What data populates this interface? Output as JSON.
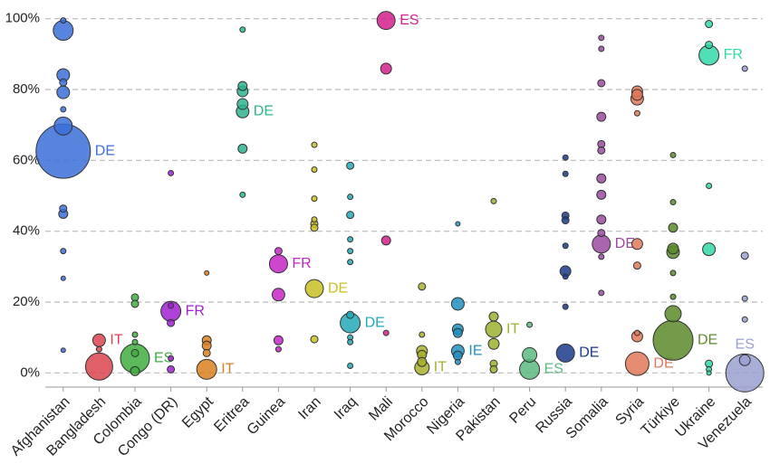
{
  "chart_data": {
    "type": "bubble",
    "categories": [
      "Afghanistan",
      "Bangladesh",
      "Colombia",
      "Congo (DR)",
      "Egypt",
      "Eritrea",
      "Guinea",
      "Iran",
      "Iraq",
      "Mali",
      "Morocco",
      "Nigeria",
      "Pakistan",
      "Peru",
      "Russia",
      "Somalia",
      "Syria",
      "Türkiye",
      "Ukraine",
      "Venezuela"
    ],
    "ylim": [
      -4,
      104
    ],
    "yticks": [
      {
        "value": 0,
        "label": "0%"
      },
      {
        "value": 20,
        "label": "20%"
      },
      {
        "value": 40,
        "label": "40%"
      },
      {
        "value": 60,
        "label": "60%"
      },
      {
        "value": 80,
        "label": "80%"
      },
      {
        "value": 100,
        "label": "100%"
      }
    ],
    "grid": true,
    "series": [
      {
        "color": "#3b6fd8",
        "values": [
          99.5,
          96.7,
          84.1,
          82,
          79.2,
          74.4,
          69.7,
          62.6,
          46.4,
          44.9,
          34.4,
          26.7,
          6.4
        ],
        "sizes": [
          3,
          11,
          7,
          4,
          7,
          3,
          10,
          30,
          4,
          5,
          3,
          2.5,
          2.5
        ],
        "point_labels": [
          null,
          null,
          null,
          null,
          null,
          null,
          null,
          "DE",
          null,
          null,
          null,
          null,
          null
        ]
      },
      {
        "color": "#d9444f",
        "values": [
          9.2,
          6.7,
          1.8
        ],
        "sizes": [
          7,
          3,
          15
        ],
        "point_labels": [
          "IT",
          null,
          null
        ]
      },
      {
        "color": "#3fae3f",
        "values": [
          21.3,
          19.5,
          10.8,
          8.7,
          5.6,
          4.1,
          0.5
        ],
        "sizes": [
          4,
          4,
          3,
          3,
          4,
          16,
          5
        ],
        "point_labels": [
          null,
          null,
          null,
          null,
          null,
          "ES",
          null
        ]
      },
      {
        "color": "#a020d0",
        "values": [
          56.4,
          19,
          17.4,
          14.1,
          4.1,
          1
        ],
        "sizes": [
          3,
          3,
          11,
          4,
          3,
          4
        ],
        "point_labels": [
          null,
          null,
          "FR",
          null,
          null,
          null
        ]
      },
      {
        "color": "#d98020",
        "values": [
          28.2,
          9.2,
          7.7,
          5.6,
          1
        ],
        "sizes": [
          2.5,
          5,
          5,
          4,
          11
        ],
        "point_labels": [
          null,
          null,
          null,
          null,
          "IT"
        ]
      },
      {
        "color": "#2fb38f",
        "values": [
          96.9,
          81,
          79.5,
          75.9,
          73.8,
          63.3,
          50.3
        ],
        "sizes": [
          3,
          5,
          6,
          6,
          7,
          5,
          3
        ],
        "point_labels": [
          null,
          null,
          null,
          null,
          "DE",
          null,
          null
        ]
      },
      {
        "color": "#c624c6",
        "values": [
          34.4,
          30.8,
          22.1,
          9.2,
          6.7
        ],
        "sizes": [
          4,
          10,
          7,
          5,
          3
        ],
        "point_labels": [
          null,
          "FR",
          null,
          null,
          null
        ]
      },
      {
        "color": "#c8c024",
        "values": [
          64.4,
          57.4,
          49.2,
          43.3,
          42.1,
          41,
          23.8,
          9.5
        ],
        "sizes": [
          3,
          3,
          3,
          3,
          4,
          4,
          10,
          4
        ],
        "point_labels": [
          null,
          null,
          null,
          null,
          null,
          null,
          "DE",
          null
        ]
      },
      {
        "color": "#22a8b8",
        "values": [
          58.5,
          49.7,
          44.6,
          37.7,
          34.4,
          31.3,
          16.4,
          14.1,
          10,
          8.7,
          2
        ],
        "sizes": [
          4,
          3,
          4,
          3,
          3,
          3,
          4,
          11,
          3,
          3,
          3
        ],
        "point_labels": [
          null,
          null,
          null,
          null,
          null,
          null,
          null,
          "DE",
          null,
          null,
          null
        ]
      },
      {
        "color": "#d4208c",
        "values": [
          99.5,
          85.9,
          37.4,
          11.3
        ],
        "sizes": [
          10,
          6,
          5,
          3
        ],
        "point_labels": [
          "ES",
          null,
          null,
          null
        ]
      },
      {
        "color": "#a8b02c",
        "values": [
          24.4,
          10.8,
          6.2,
          5.1,
          3.1,
          1.5
        ],
        "sizes": [
          4,
          3,
          6,
          5,
          5,
          8
        ],
        "point_labels": [
          null,
          null,
          null,
          null,
          null,
          "IT"
        ]
      },
      {
        "color": "#2090c0",
        "values": [
          42.1,
          19.5,
          12.3,
          11.3,
          6.2,
          4.9,
          3.1
        ],
        "sizes": [
          2.5,
          7,
          6,
          5,
          7,
          5,
          3
        ],
        "point_labels": [
          null,
          null,
          null,
          null,
          "IE",
          null,
          null
        ]
      },
      {
        "color": "#9cb030",
        "values": [
          48.5,
          15.9,
          12.3,
          8.2,
          2.6,
          1
        ],
        "sizes": [
          3,
          5,
          9,
          6,
          4,
          4
        ],
        "point_labels": [
          null,
          null,
          "IT",
          null,
          null,
          null
        ]
      },
      {
        "color": "#5cb880",
        "values": [
          13.6,
          5.1,
          1
        ],
        "sizes": [
          3,
          8,
          11
        ],
        "point_labels": [
          null,
          null,
          "ES"
        ]
      },
      {
        "color": "#1a3a8a",
        "values": [
          60.8,
          56.2,
          44.4,
          43.1,
          35.9,
          28.7,
          27.2,
          18.7,
          5.6
        ],
        "sizes": [
          3,
          3,
          4,
          4,
          3,
          6,
          3,
          3,
          10
        ],
        "point_labels": [
          null,
          null,
          null,
          null,
          null,
          null,
          null,
          null,
          "DE"
        ]
      },
      {
        "color": "#9a4aa0",
        "values": [
          94.6,
          91.5,
          81.8,
          72.3,
          64.6,
          62.8,
          54.9,
          50.3,
          43.3,
          39.5,
          36.4,
          32.8,
          22.6
        ],
        "sizes": [
          3,
          3,
          4,
          5,
          4,
          4,
          5,
          5,
          5,
          4,
          10,
          3,
          3
        ],
        "point_labels": [
          null,
          null,
          null,
          null,
          null,
          null,
          null,
          null,
          null,
          null,
          "DE",
          null,
          null
        ]
      },
      {
        "color": "#e07858",
        "values": [
          79.5,
          78.5,
          77.4,
          73.3,
          36.4,
          30.3,
          11.3,
          10.3,
          2.6
        ],
        "sizes": [
          6,
          6,
          7,
          3,
          6,
          4,
          3,
          6,
          13
        ],
        "point_labels": [
          null,
          null,
          null,
          null,
          null,
          null,
          null,
          null,
          "DE"
        ]
      },
      {
        "color": "#5a8a2a",
        "values": [
          61.5,
          48.2,
          41,
          35.1,
          34.1,
          28.2,
          21.5,
          16.7,
          9.2
        ],
        "sizes": [
          3,
          3,
          5,
          6,
          7,
          3,
          3,
          9,
          22
        ],
        "point_labels": [
          null,
          null,
          null,
          null,
          null,
          null,
          null,
          null,
          "DE"
        ]
      },
      {
        "color": "#30d8a8",
        "values": [
          98.5,
          92.6,
          89.7,
          52.8,
          34.9,
          2.6,
          1,
          0
        ],
        "sizes": [
          4,
          4,
          11,
          3,
          7,
          4,
          3,
          2.5
        ],
        "point_labels": [
          null,
          null,
          "FR",
          null,
          null,
          null,
          null,
          null
        ]
      },
      {
        "color": "#9aa0d0",
        "values": [
          85.9,
          33.1,
          21,
          15.1,
          3.6,
          0
        ],
        "sizes": [
          3,
          4,
          3,
          3,
          6,
          21
        ],
        "point_labels": [
          null,
          null,
          null,
          null,
          null,
          "ES"
        ]
      }
    ]
  }
}
